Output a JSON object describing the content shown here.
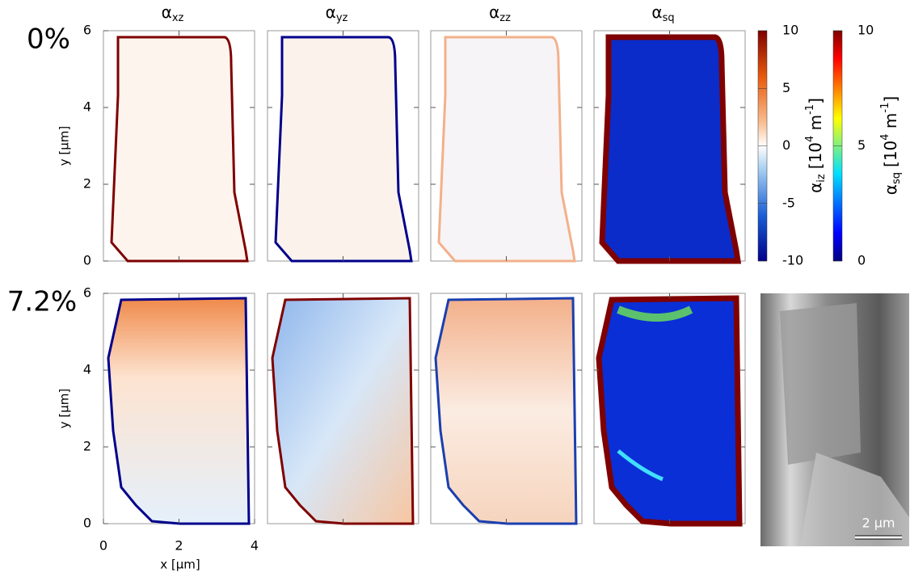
{
  "rows": [
    {
      "label": "0%"
    },
    {
      "label": "7.2%"
    }
  ],
  "columns": [
    {
      "symbol": "α",
      "subscript": "xz"
    },
    {
      "symbol": "α",
      "subscript": "yz"
    },
    {
      "symbol": "α",
      "subscript": "zz"
    },
    {
      "symbol": "α",
      "subscript": "sq"
    }
  ],
  "axes": {
    "y_label": "y [µm]",
    "x_label": "x [µm]",
    "xlim": [
      0,
      4
    ],
    "ylim": [
      0,
      6
    ],
    "xticks": [
      0,
      2,
      4
    ],
    "yticks": [
      0,
      2,
      4,
      6
    ]
  },
  "colorbars": [
    {
      "symbol": "α",
      "subscript": "iz",
      "unit_open": "[10",
      "exponent": "4",
      "unit": " m",
      "unit_exponent": "-1",
      "unit_close": "]",
      "lim": [
        -10,
        10
      ],
      "ticks": [
        10,
        5,
        0,
        -5,
        -10
      ]
    },
    {
      "symbol": "α",
      "subscript": "sq",
      "unit_open": "[10",
      "exponent": "4",
      "unit": " m",
      "unit_exponent": "-1",
      "unit_close": "]",
      "lim": [
        0,
        10
      ],
      "ticks": [
        10,
        5,
        0
      ]
    }
  ],
  "scale_bar": "2 µm"
}
